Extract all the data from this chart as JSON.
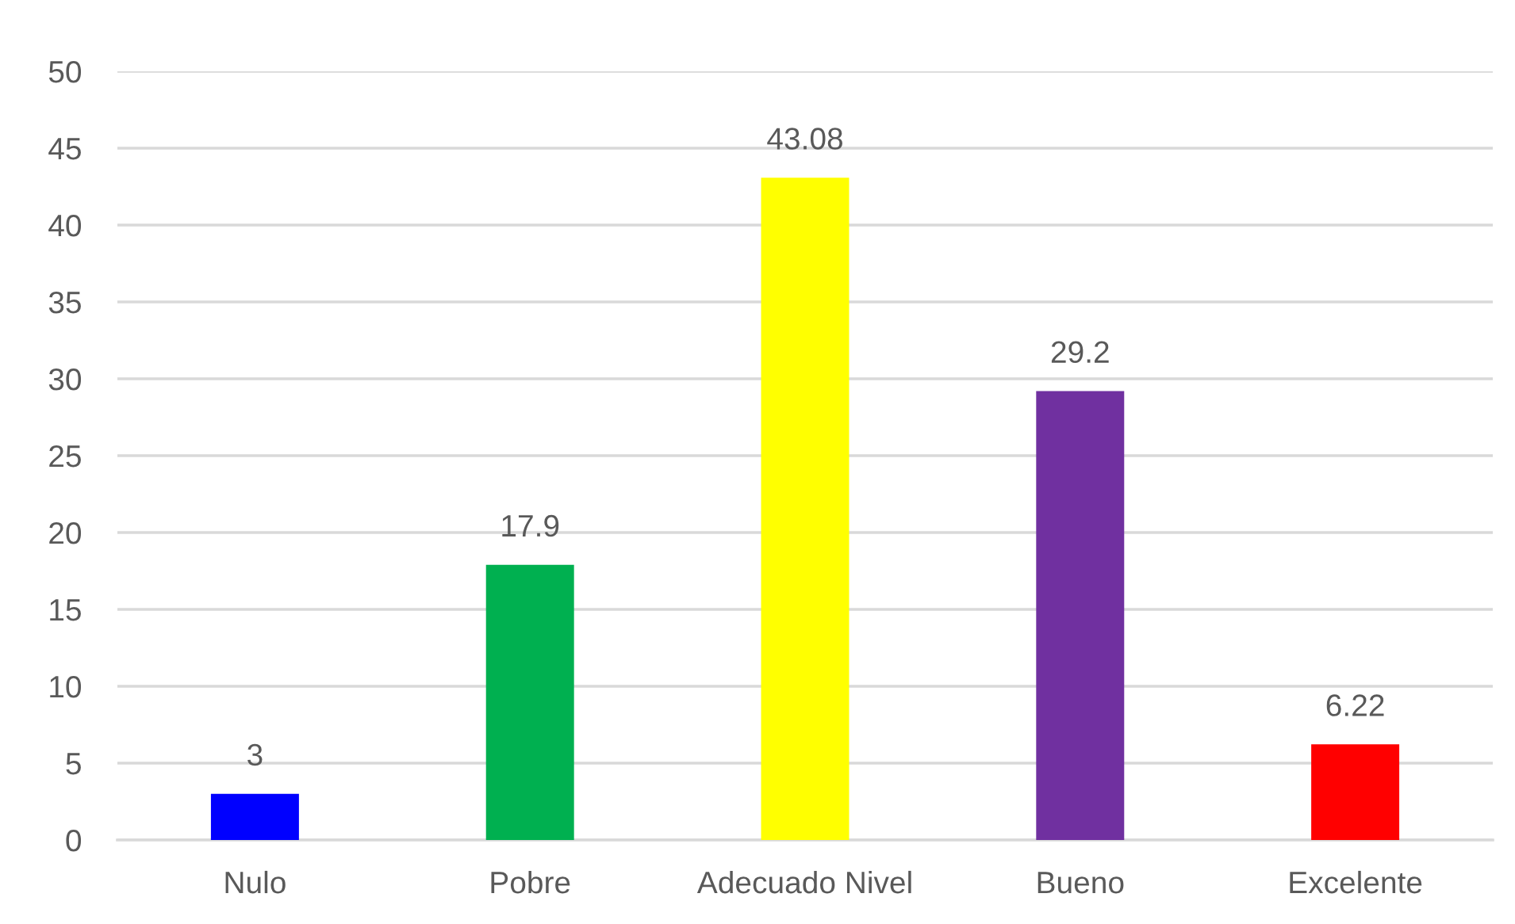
{
  "chart_data": {
    "type": "bar",
    "categories": [
      "Nulo",
      "Pobre",
      "Adecuado Nivel",
      "Bueno",
      "Excelente"
    ],
    "values": [
      3,
      17.9,
      43.08,
      29.2,
      6.22
    ],
    "colors": [
      "#0000ff",
      "#00b050",
      "#ffff00",
      "#7030a0",
      "#ff0000"
    ],
    "ylim": [
      0,
      50
    ],
    "yticks": [
      0,
      5,
      10,
      15,
      20,
      25,
      30,
      35,
      40,
      45,
      50
    ],
    "grid": "y",
    "data_labels": true
  }
}
